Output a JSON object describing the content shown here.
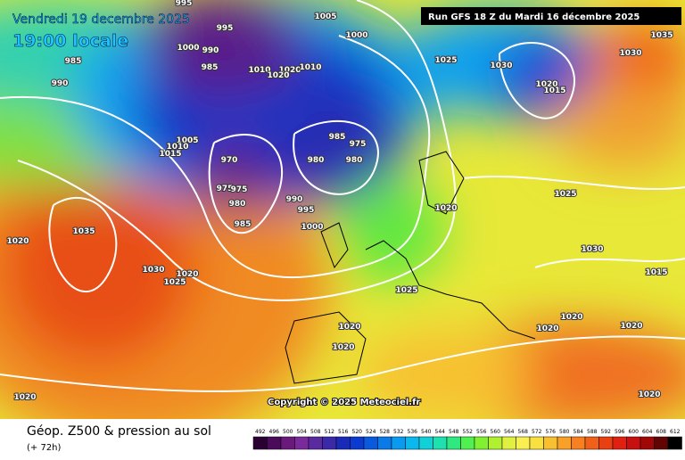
{
  "header": {
    "date": "Vendredi 19 decembre 2025",
    "time": "19:00 locale",
    "run": "Run GFS 18 Z du Mardi 16 décembre 2025"
  },
  "copyright": "Copyright © 2025 Meteociel.fr",
  "footer": {
    "title": "Géop. Z500 & pression au sol",
    "lead": "(+ 72h)"
  },
  "isobar_labels": [
    "995",
    "1005",
    "995",
    "1000",
    "990",
    "985",
    "985",
    "990",
    "1000",
    "1025",
    "1030",
    "1035",
    "1030",
    "1020",
    "1015",
    "1010",
    "1020",
    "1010",
    "1020",
    "1005",
    "1010",
    "1015",
    "970",
    "975",
    "975",
    "980",
    "985",
    "985",
    "975",
    "980",
    "980",
    "990",
    "995",
    "1000",
    "1020",
    "1025",
    "1035",
    "1020",
    "1030",
    "1020",
    "1025",
    "1030",
    "1015",
    "1025",
    "1020",
    "1020",
    "1020",
    "1020",
    "1020",
    "1020",
    "1020"
  ],
  "scale": {
    "values": [
      492,
      496,
      500,
      504,
      508,
      512,
      516,
      520,
      524,
      528,
      532,
      536,
      540,
      544,
      548,
      552,
      556,
      560,
      564,
      568,
      572,
      576,
      580,
      584,
      588,
      592,
      596,
      600,
      604,
      608,
      612
    ],
    "colors": [
      "#2a0033",
      "#4b0a5a",
      "#6a1a7a",
      "#7a2a9a",
      "#5a2aa0",
      "#3a2aa8",
      "#1a2ab8",
      "#0a3ad0",
      "#0a5ae0",
      "#0a7ae8",
      "#0a9af0",
      "#0ab8f0",
      "#10d0d8",
      "#20e0b0",
      "#30e880",
      "#50f050",
      "#80f030",
      "#b0f030",
      "#e0f040",
      "#f8f050",
      "#f8e040",
      "#f8c030",
      "#f8a028",
      "#f88020",
      "#f06018",
      "#e84010",
      "#e02010",
      "#c81010",
      "#a00808",
      "#600404",
      "#000000"
    ]
  }
}
